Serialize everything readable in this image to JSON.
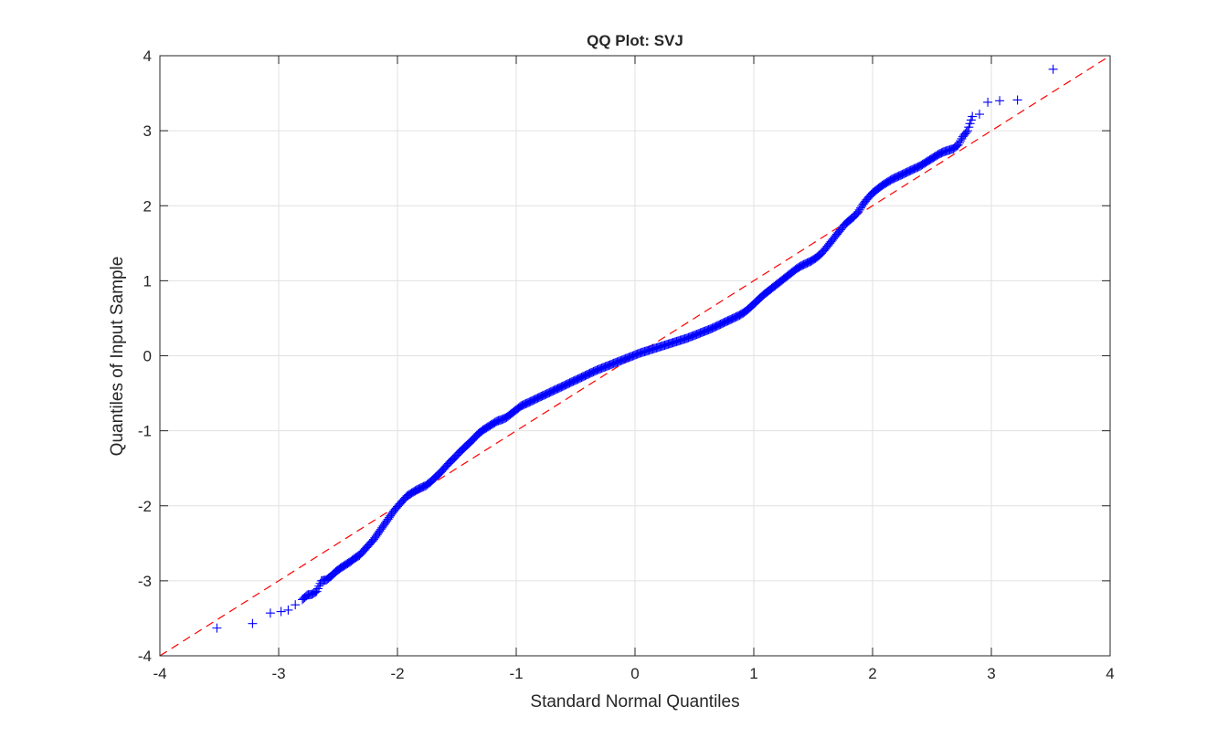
{
  "chart_data": {
    "type": "scatter",
    "title": "QQ Plot: SVJ",
    "xlabel": "Standard Normal Quantiles",
    "ylabel": "Quantiles of Input Sample",
    "xlim": [
      -4,
      4
    ],
    "ylim": [
      -4,
      4
    ],
    "xticks": [
      "-4",
      "-3",
      "-2",
      "-1",
      "0",
      "1",
      "2",
      "3",
      "4"
    ],
    "yticks": [
      "-4",
      "-3",
      "-2",
      "-1",
      "0",
      "1",
      "2",
      "3",
      "4"
    ],
    "grid": true,
    "marker": "+",
    "colors": {
      "points": "#0000ff",
      "reference_line": "#ff0000",
      "grid": "#e1e1e1",
      "axes": "#262626"
    },
    "reference_line": {
      "style": "dashed",
      "x": [
        -4,
        4
      ],
      "y": [
        -4,
        4
      ]
    },
    "points": [
      [
        -3.52,
        -3.63
      ],
      [
        -3.22,
        -3.57
      ],
      [
        -3.07,
        -3.43
      ],
      [
        -2.98,
        -3.41
      ],
      [
        -2.92,
        -3.39
      ],
      [
        -2.86,
        -3.32
      ],
      [
        -2.8,
        -3.25
      ],
      [
        -2.76,
        -3.19
      ],
      [
        -2.72,
        -3.18
      ],
      [
        -2.68,
        -3.14
      ],
      [
        -2.64,
        -3.0
      ],
      [
        -2.6,
        -2.99
      ],
      [
        -2.56,
        -2.94
      ],
      [
        -2.52,
        -2.88
      ],
      [
        -2.48,
        -2.83
      ],
      [
        -2.44,
        -2.79
      ],
      [
        -2.4,
        -2.75
      ],
      [
        -2.36,
        -2.7
      ],
      [
        -2.32,
        -2.66
      ],
      [
        -2.28,
        -2.59
      ],
      [
        -2.24,
        -2.52
      ],
      [
        -2.2,
        -2.45
      ],
      [
        -2.16,
        -2.36
      ],
      [
        -2.12,
        -2.27
      ],
      [
        -2.08,
        -2.18
      ],
      [
        -2.04,
        -2.09
      ],
      [
        -2.0,
        -2.01
      ],
      [
        -1.96,
        -1.94
      ],
      [
        -1.92,
        -1.87
      ],
      [
        -1.88,
        -1.83
      ],
      [
        -1.84,
        -1.79
      ],
      [
        -1.8,
        -1.76
      ],
      [
        -1.76,
        -1.73
      ],
      [
        -1.72,
        -1.68
      ],
      [
        -1.68,
        -1.62
      ],
      [
        -1.64,
        -1.56
      ],
      [
        -1.6,
        -1.49
      ],
      [
        -1.56,
        -1.42
      ],
      [
        -1.52,
        -1.36
      ],
      [
        -1.48,
        -1.29
      ],
      [
        -1.44,
        -1.23
      ],
      [
        -1.4,
        -1.17
      ],
      [
        -1.36,
        -1.11
      ],
      [
        -1.32,
        -1.04
      ],
      [
        -1.28,
        -0.99
      ],
      [
        -1.24,
        -0.95
      ],
      [
        -1.2,
        -0.91
      ],
      [
        -1.16,
        -0.87
      ],
      [
        -1.12,
        -0.85
      ],
      [
        -1.08,
        -0.82
      ],
      [
        -1.04,
        -0.77
      ],
      [
        -1.0,
        -0.72
      ],
      [
        -0.96,
        -0.67
      ],
      [
        -0.92,
        -0.64
      ],
      [
        -0.88,
        -0.61
      ],
      [
        -0.84,
        -0.58
      ],
      [
        -0.8,
        -0.55
      ],
      [
        -0.76,
        -0.52
      ],
      [
        -0.72,
        -0.49
      ],
      [
        -0.68,
        -0.46
      ],
      [
        -0.64,
        -0.43
      ],
      [
        -0.6,
        -0.4
      ],
      [
        -0.56,
        -0.37
      ],
      [
        -0.52,
        -0.34
      ],
      [
        -0.48,
        -0.31
      ],
      [
        -0.44,
        -0.28
      ],
      [
        -0.4,
        -0.25
      ],
      [
        -0.36,
        -0.22
      ],
      [
        -0.32,
        -0.19
      ],
      [
        -0.28,
        -0.165
      ],
      [
        -0.24,
        -0.14
      ],
      [
        -0.2,
        -0.115
      ],
      [
        -0.16,
        -0.09
      ],
      [
        -0.12,
        -0.065
      ],
      [
        -0.08,
        -0.04
      ],
      [
        -0.04,
        -0.015
      ],
      [
        0.0,
        0.01
      ],
      [
        0.04,
        0.035
      ],
      [
        0.08,
        0.055
      ],
      [
        0.12,
        0.075
      ],
      [
        0.16,
        0.095
      ],
      [
        0.2,
        0.115
      ],
      [
        0.24,
        0.135
      ],
      [
        0.28,
        0.155
      ],
      [
        0.32,
        0.175
      ],
      [
        0.36,
        0.195
      ],
      [
        0.4,
        0.215
      ],
      [
        0.44,
        0.235
      ],
      [
        0.48,
        0.26
      ],
      [
        0.52,
        0.285
      ],
      [
        0.56,
        0.31
      ],
      [
        0.6,
        0.335
      ],
      [
        0.64,
        0.36
      ],
      [
        0.68,
        0.39
      ],
      [
        0.72,
        0.42
      ],
      [
        0.76,
        0.45
      ],
      [
        0.8,
        0.48
      ],
      [
        0.84,
        0.51
      ],
      [
        0.88,
        0.54
      ],
      [
        0.92,
        0.58
      ],
      [
        0.96,
        0.63
      ],
      [
        1.0,
        0.69
      ],
      [
        1.04,
        0.75
      ],
      [
        1.08,
        0.81
      ],
      [
        1.12,
        0.86
      ],
      [
        1.16,
        0.91
      ],
      [
        1.2,
        0.96
      ],
      [
        1.24,
        1.01
      ],
      [
        1.28,
        1.06
      ],
      [
        1.32,
        1.11
      ],
      [
        1.36,
        1.16
      ],
      [
        1.4,
        1.2
      ],
      [
        1.44,
        1.23
      ],
      [
        1.48,
        1.26
      ],
      [
        1.52,
        1.3
      ],
      [
        1.56,
        1.35
      ],
      [
        1.6,
        1.42
      ],
      [
        1.64,
        1.5
      ],
      [
        1.68,
        1.58
      ],
      [
        1.72,
        1.66
      ],
      [
        1.76,
        1.74
      ],
      [
        1.8,
        1.8
      ],
      [
        1.84,
        1.85
      ],
      [
        1.88,
        1.92
      ],
      [
        1.92,
        2.02
      ],
      [
        1.96,
        2.1
      ],
      [
        2.0,
        2.17
      ],
      [
        2.04,
        2.22
      ],
      [
        2.08,
        2.27
      ],
      [
        2.12,
        2.31
      ],
      [
        2.16,
        2.35
      ],
      [
        2.2,
        2.38
      ],
      [
        2.24,
        2.41
      ],
      [
        2.28,
        2.44
      ],
      [
        2.32,
        2.47
      ],
      [
        2.36,
        2.5
      ],
      [
        2.4,
        2.53
      ],
      [
        2.44,
        2.57
      ],
      [
        2.48,
        2.61
      ],
      [
        2.52,
        2.65
      ],
      [
        2.56,
        2.69
      ],
      [
        2.6,
        2.72
      ],
      [
        2.64,
        2.74
      ],
      [
        2.68,
        2.76
      ],
      [
        2.72,
        2.81
      ],
      [
        2.76,
        2.92
      ],
      [
        2.8,
        3.0
      ],
      [
        2.84,
        3.19
      ],
      [
        2.9,
        3.22
      ],
      [
        2.97,
        3.38
      ],
      [
        3.07,
        3.4
      ],
      [
        3.22,
        3.41
      ],
      [
        3.52,
        3.82
      ]
    ]
  }
}
